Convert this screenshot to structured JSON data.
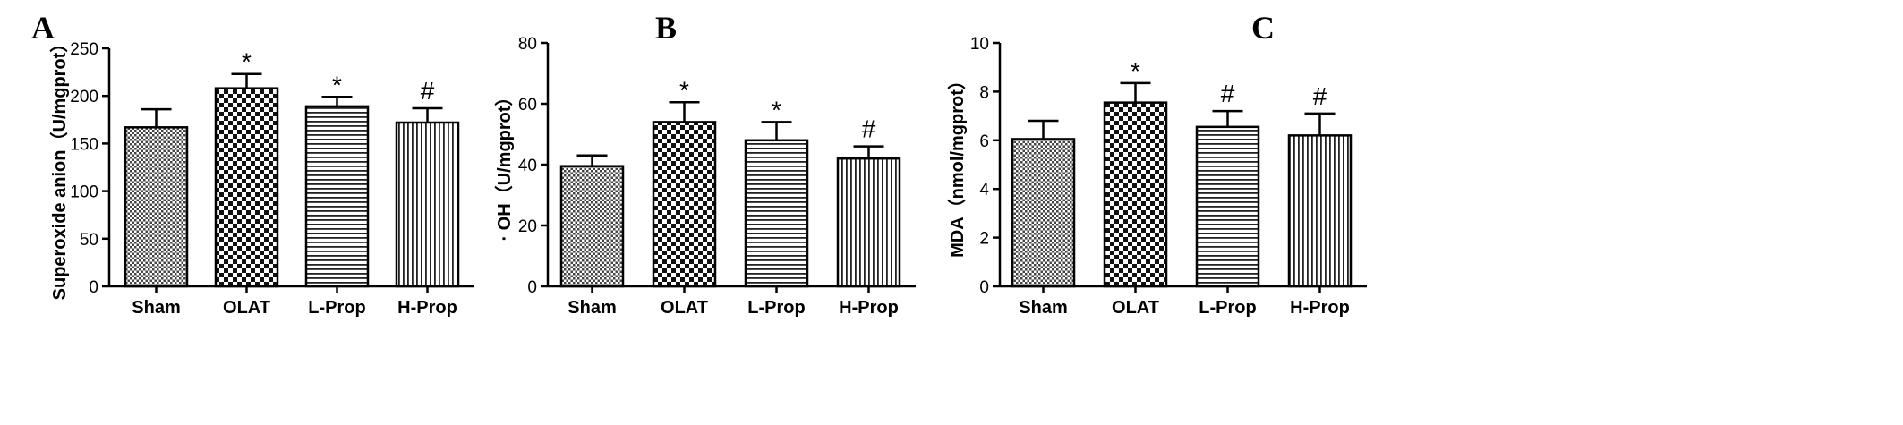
{
  "chart_data": [
    {
      "type": "bar",
      "panel": "A",
      "categories": [
        "Sham",
        "OLAT",
        "L-Prop",
        "H-Prop"
      ],
      "values": [
        167,
        208,
        189,
        172
      ],
      "errors": [
        19,
        15,
        10,
        15
      ],
      "significance": [
        "",
        "*",
        "*",
        "#"
      ],
      "patterns": [
        "dots",
        "checker",
        "hlines",
        "vlines"
      ],
      "ylabel": "Superoxide anion（U/mgprot）",
      "xlabel": "",
      "ylim": [
        0,
        250
      ],
      "yticks": [
        0,
        50,
        100,
        150,
        200,
        250
      ],
      "grid": false
    },
    {
      "type": "bar",
      "panel": "B",
      "categories": [
        "Sham",
        "OLAT",
        "L-Prop",
        "H-Prop"
      ],
      "values": [
        39.5,
        54,
        48,
        42
      ],
      "errors": [
        3.5,
        6.5,
        6,
        4
      ],
      "significance": [
        "",
        "*",
        "*",
        "#"
      ],
      "patterns": [
        "dots",
        "checker",
        "hlines",
        "vlines"
      ],
      "ylabel": "· OH（U/mgprot）",
      "xlabel": "",
      "ylim": [
        0,
        80
      ],
      "yticks": [
        0,
        20,
        40,
        60,
        80
      ],
      "grid": false
    },
    {
      "type": "bar",
      "panel": "C",
      "categories": [
        "Sham",
        "OLAT",
        "L-Prop",
        "H-Prop"
      ],
      "values": [
        6.05,
        7.55,
        6.55,
        6.2
      ],
      "errors": [
        0.75,
        0.8,
        0.65,
        0.9
      ],
      "significance": [
        "",
        "*",
        "#",
        "#"
      ],
      "patterns": [
        "dots",
        "checker",
        "hlines",
        "vlines"
      ],
      "ylabel": "MDA（nmol/mgprot）",
      "xlabel": "",
      "ylim": [
        0,
        10
      ],
      "yticks": [
        0,
        2,
        4,
        6,
        8,
        10
      ],
      "grid": false
    }
  ]
}
